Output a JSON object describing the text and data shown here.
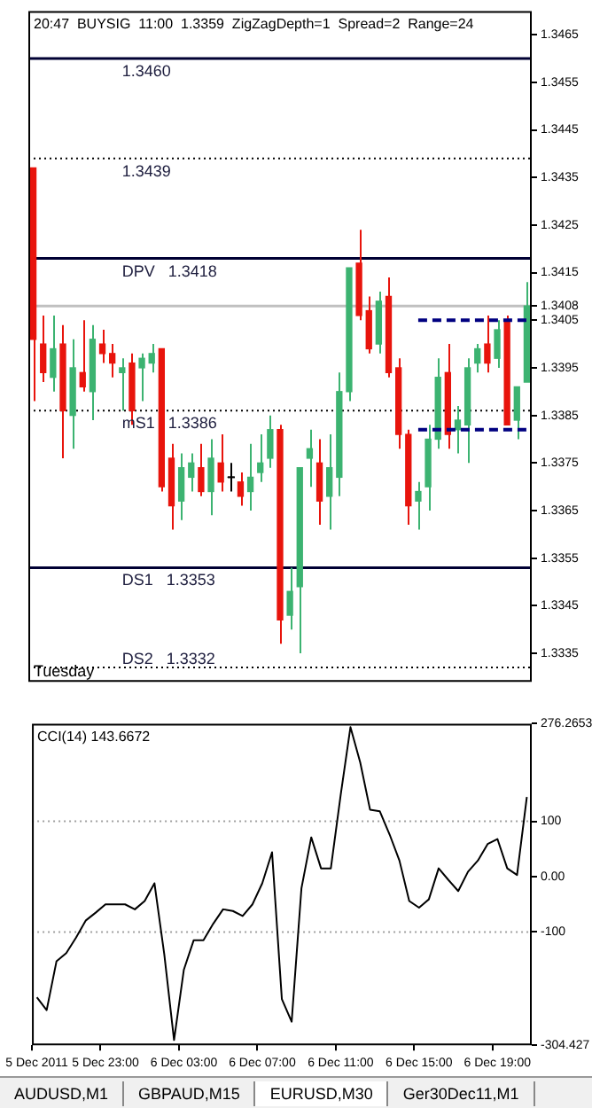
{
  "chart_data": [
    {
      "type": "candlestick",
      "title": "20:47  BUYSIG  11:00  1.3359  ZigZagDepth=1  Spread=2  Range=24",
      "categories": [
        null,
        null,
        null,
        null,
        null,
        null,
        null,
        null,
        null,
        null,
        null,
        null,
        null,
        null,
        null,
        null,
        null,
        null,
        null,
        null,
        null,
        null,
        null,
        null,
        null,
        null,
        null,
        null,
        null,
        null,
        null,
        null,
        null,
        null,
        null,
        null,
        null,
        null,
        null,
        null,
        null,
        null,
        null,
        null,
        null,
        null,
        null,
        null,
        null,
        null,
        null
      ],
      "ohlc": [
        [
          1.3437,
          1.3437,
          1.3388,
          1.3401
        ],
        [
          1.34,
          1.3406,
          1.3392,
          1.3394
        ],
        [
          1.3393,
          1.3406,
          1.339,
          1.3399
        ],
        [
          1.34,
          1.3404,
          1.3376,
          1.3386
        ],
        [
          1.3385,
          1.3401,
          1.3378,
          1.3395
        ],
        [
          1.3394,
          1.3405,
          1.339,
          1.3391
        ],
        [
          1.339,
          1.3404,
          1.3384,
          1.3401
        ],
        [
          1.34,
          1.3403,
          1.3396,
          1.3398
        ],
        [
          1.3398,
          1.34,
          1.3393,
          1.3396
        ],
        [
          1.3394,
          1.3397,
          1.3386,
          1.3395
        ],
        [
          1.3396,
          1.3398,
          1.3383,
          1.3386
        ],
        [
          1.3395,
          1.3398,
          1.3388,
          1.3397
        ],
        [
          1.3396,
          1.34,
          1.3394,
          1.3398
        ],
        [
          1.3399,
          1.3399,
          1.3369,
          1.337
        ],
        [
          1.3376,
          1.3379,
          1.3361,
          1.3366
        ],
        [
          1.3367,
          1.3377,
          1.3363,
          1.3374
        ],
        [
          1.3372,
          1.3377,
          1.3369,
          1.3375
        ],
        [
          1.3374,
          1.3379,
          1.3368,
          1.3369
        ],
        [
          1.3369,
          1.338,
          1.3364,
          1.3376
        ],
        [
          1.3375,
          1.3381,
          1.3369,
          1.3371
        ],
        [
          1.3372,
          1.3375,
          1.3369,
          1.3372
        ],
        [
          1.3371,
          1.3373,
          1.3366,
          1.3368
        ],
        [
          1.3369,
          1.3379,
          1.3365,
          1.3372
        ],
        [
          1.3373,
          1.3381,
          1.3371,
          1.3375
        ],
        [
          1.3376,
          1.3385,
          1.3374,
          1.3382
        ],
        [
          1.3382,
          1.3383,
          1.3337,
          1.3342
        ],
        [
          1.3343,
          1.3353,
          1.334,
          1.3348
        ],
        [
          1.3349,
          1.3374,
          1.3335,
          1.3374
        ],
        [
          1.3376,
          1.3382,
          1.337,
          1.3378
        ],
        [
          1.3375,
          1.338,
          1.3362,
          1.3367
        ],
        [
          1.3368,
          1.3381,
          1.3361,
          1.3374
        ],
        [
          1.3372,
          1.3394,
          1.3368,
          1.339
        ],
        [
          1.339,
          1.3416,
          1.3388,
          1.3416
        ],
        [
          1.3417,
          1.3424,
          1.3405,
          1.3406
        ],
        [
          1.3407,
          1.341,
          1.3398,
          1.3399
        ],
        [
          1.34,
          1.3411,
          1.3398,
          1.3409
        ],
        [
          1.341,
          1.3414,
          1.3393,
          1.3394
        ],
        [
          1.3395,
          1.3397,
          1.3378,
          1.3381
        ],
        [
          1.3381,
          1.3382,
          1.3362,
          1.3366
        ],
        [
          1.3367,
          1.3371,
          1.3361,
          1.3369
        ],
        [
          1.337,
          1.3383,
          1.3365,
          1.338
        ],
        [
          1.338,
          1.3397,
          1.3378,
          1.3393
        ],
        [
          1.3394,
          1.34,
          1.3378,
          1.3381
        ],
        [
          1.3382,
          1.3387,
          1.3377,
          1.3384
        ],
        [
          1.3383,
          1.3397,
          1.3375,
          1.3395
        ],
        [
          1.3396,
          1.34,
          1.3394,
          1.3399
        ],
        [
          1.34,
          1.3406,
          1.3394,
          1.3396
        ],
        [
          1.3397,
          1.3405,
          1.3395,
          1.3403
        ],
        [
          1.3405,
          1.3406,
          1.3383,
          1.3383
        ],
        [
          1.3384,
          1.3391,
          1.338,
          1.3391
        ],
        [
          1.3392,
          1.3413,
          1.3392,
          1.3408
        ]
      ],
      "colors": [
        "#e8140c",
        "#e8140c",
        "#3cb371",
        "#e8140c",
        "#3cb371",
        "#e8140c",
        "#3cb371",
        "#e8140c",
        "#e8140c",
        "#3cb371",
        "#e8140c",
        "#3cb371",
        "#3cb371",
        "#e8140c",
        "#e8140c",
        "#3cb371",
        "#3cb371",
        "#e8140c",
        "#3cb371",
        "#e8140c",
        "#000000",
        "#e8140c",
        "#3cb371",
        "#3cb371",
        "#3cb371",
        "#e8140c",
        "#3cb371",
        "#3cb371",
        "#3cb371",
        "#e8140c",
        "#3cb371",
        "#3cb371",
        "#3cb371",
        "#e8140c",
        "#e8140c",
        "#3cb371",
        "#e8140c",
        "#e8140c",
        "#e8140c",
        "#3cb371",
        "#3cb371",
        "#3cb371",
        "#e8140c",
        "#3cb371",
        "#3cb371",
        "#3cb371",
        "#e8140c",
        "#3cb371",
        "#e8140c",
        "#3cb371",
        "#3cb371"
      ],
      "series": [
        {
          "type": "line",
          "color": "#000080",
          "line_style": "dashed",
          "values": [
            null,
            null,
            null,
            null,
            null,
            null,
            null,
            null,
            null,
            null,
            null,
            null,
            null,
            null,
            null,
            null,
            null,
            null,
            null,
            null,
            null,
            null,
            null,
            null,
            null,
            null,
            null,
            null,
            null,
            null,
            null,
            null,
            null,
            null,
            null,
            null,
            null,
            null,
            null,
            1.3405,
            1.3405,
            1.3405,
            1.3405,
            1.3405,
            1.3405,
            1.3405,
            1.3405,
            1.3405,
            1.3405,
            1.3405,
            1.3405
          ]
        },
        {
          "type": "line",
          "color": "#000080",
          "line_style": "dashed",
          "values": [
            null,
            null,
            null,
            null,
            null,
            null,
            null,
            null,
            null,
            null,
            null,
            null,
            null,
            null,
            null,
            null,
            null,
            null,
            null,
            null,
            null,
            null,
            null,
            null,
            null,
            null,
            null,
            null,
            null,
            null,
            null,
            null,
            null,
            null,
            null,
            null,
            null,
            null,
            null,
            1.3382,
            1.3382,
            1.3382,
            1.3382,
            1.3382,
            1.3382,
            1.3382,
            1.3382,
            1.3382,
            1.3382,
            1.3382,
            1.3382
          ]
        }
      ],
      "ylim": [
        1.3329,
        1.347
      ],
      "yticks": [
        1.3335,
        1.3345,
        1.3355,
        1.3365,
        1.3375,
        1.3385,
        1.3395,
        1.3405,
        1.3408,
        1.3415,
        1.3425,
        1.3435,
        1.3445,
        1.3455,
        1.3465
      ],
      "ref_lines": [
        {
          "axis": "y",
          "value": 1.346,
          "label": "1.3460",
          "color": "#000033",
          "line_style": "solid"
        },
        {
          "axis": "y",
          "value": 1.3439,
          "label": "1.3439",
          "color": "#000000",
          "line_style": "dotted"
        },
        {
          "axis": "y",
          "value": 1.3418,
          "label": "DPV   1.3418",
          "color": "#000033",
          "line_style": "solid"
        },
        {
          "axis": "y",
          "value": 1.3408,
          "color": "#c0c0c0",
          "line_style": "solid"
        },
        {
          "axis": "y",
          "value": 1.3386,
          "label": "mS1   1.3386",
          "color": "#000000",
          "line_style": "dotted"
        },
        {
          "axis": "y",
          "value": 1.3353,
          "label": "DS1   1.3353",
          "color": "#000033",
          "line_style": "solid"
        },
        {
          "axis": "y",
          "value": 1.3332,
          "label": "DS2   1.3332",
          "color": "#000000",
          "line_style": "dotted"
        }
      ],
      "annotations": [
        "Tuesday"
      ]
    },
    {
      "type": "line",
      "title": "CCI(14) 143.6672",
      "categories": [
        "5 Dec 2011",
        null,
        null,
        null,
        null,
        null,
        null,
        "5 Dec 23:00",
        null,
        null,
        null,
        null,
        null,
        null,
        null,
        "6 Dec 03:00",
        null,
        null,
        null,
        null,
        null,
        null,
        null,
        "6 Dec 07:00",
        null,
        null,
        null,
        null,
        null,
        null,
        null,
        "6 Dec 11:00",
        null,
        null,
        null,
        null,
        null,
        null,
        null,
        "6 Dec 15:00",
        null,
        null,
        null,
        null,
        null,
        null,
        null,
        "6 Dec 19:00",
        null,
        null,
        null
      ],
      "values": [
        -218,
        -241,
        -153,
        -138,
        -110,
        -79,
        -65,
        -50,
        -50,
        -50,
        -59,
        -44,
        -12,
        -140,
        -295,
        -168,
        -115,
        -115,
        -85,
        -59,
        -62,
        -71,
        -50,
        -12,
        44,
        -221,
        -262,
        -21,
        71,
        15,
        15,
        147,
        270,
        206,
        121,
        118,
        76,
        29,
        -44,
        -56,
        -41,
        15,
        -6,
        -26,
        9,
        29,
        59,
        68,
        15,
        3,
        143.6672
      ],
      "color": "#000000",
      "ylim": [
        -304.427,
        276.2653
      ],
      "yticks": [
        276.2653,
        100,
        {
          "value": 0,
          "label": "0.00"
        },
        -100,
        -304.427
      ],
      "ref_lines": [
        {
          "axis": "y",
          "value": 100,
          "color": "#a0a0a0",
          "line_style": "dotted"
        },
        {
          "axis": "y",
          "value": -100,
          "color": "#a0a0a0",
          "line_style": "dotted"
        }
      ],
      "annotations": [
        "AUDUSD,M1",
        "GBPAUD,M15",
        "EURUSD,M30",
        "Ger30Dec11,M1"
      ]
    }
  ]
}
